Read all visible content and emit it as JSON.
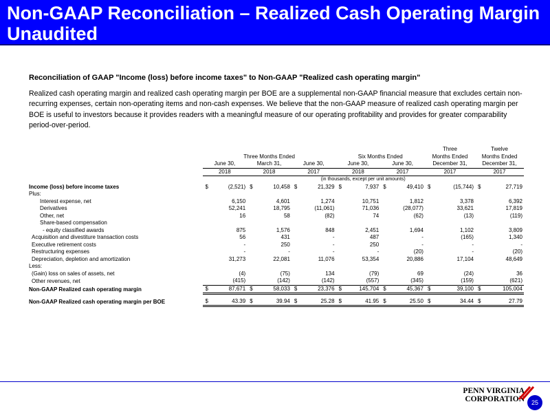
{
  "title": "Non-GAAP Reconciliation – Realized Cash Operating Margin Unaudited",
  "subheading": "Reconciliation of GAAP \"Income (loss) before income taxes\" to Non-GAAP \"Realized cash operating margin\"",
  "intro": "Realized cash operating margin and realized cash operating margin per BOE are a supplemental non-GAAP financial measure that excludes certain non-recurring expenses, certain non-operating items and non-cash  expenses. We believe that the non-GAAP measure of realized cash operating margin per BOE is useful to investors because it provides readers with a meaningful measure of our operating profitability and provides for greater comparability period-over-period.",
  "table": {
    "groups": {
      "three_months": "Three Months Ended",
      "six_months": "Six Months Ended",
      "three_top": "Three",
      "three_mid": "Months Ended",
      "twelve_top": "Twelve",
      "twelve_mid": "Months Ended"
    },
    "periods": [
      "June 30,",
      "March 31,",
      "June 30,",
      "June 30,",
      "June 30,",
      "December 31,",
      "December 31,"
    ],
    "years": [
      "2018",
      "2018",
      "2017",
      "2018",
      "2017",
      "2017",
      "2017"
    ],
    "units_note": "(in thousands, except per unit amounts)",
    "currency": "$",
    "rows": [
      {
        "label": "Income (loss) before income taxes",
        "bold": true,
        "indent": 0,
        "dollar": true,
        "values": [
          "(2,521)",
          "10,458",
          "21,329",
          "7,937",
          "49,410",
          "(15,744)",
          "27,719"
        ]
      },
      {
        "label": "Plus:",
        "bold": false,
        "indent": 0,
        "dollar": false,
        "values": [
          "",
          "",
          "",
          "",
          "",
          "",
          ""
        ]
      },
      {
        "label": "Interest expense, net",
        "bold": false,
        "indent": 2,
        "dollar": false,
        "values": [
          "6,150",
          "4,601",
          "1,274",
          "10,751",
          "1,812",
          "3,378",
          "6,392"
        ]
      },
      {
        "label": "Derivatives",
        "bold": false,
        "indent": 2,
        "dollar": false,
        "values": [
          "52,241",
          "18,795",
          "(11,061)",
          "71,036",
          "(28,077)",
          "33,621",
          "17,819"
        ]
      },
      {
        "label": "Other, net",
        "bold": false,
        "indent": 2,
        "dollar": false,
        "values": [
          "16",
          "58",
          "(82)",
          "74",
          "(62)",
          "(13)",
          "(119)"
        ]
      },
      {
        "label": "Share-based compensation",
        "bold": false,
        "indent": 2,
        "dollar": false,
        "values": [
          "",
          "",
          "",
          "",
          "",
          "",
          ""
        ]
      },
      {
        "label": "- equity classified awards",
        "bold": false,
        "indent": 3,
        "dollar": false,
        "values": [
          "875",
          "1,576",
          "848",
          "2,451",
          "1,694",
          "1,102",
          "3,809"
        ]
      },
      {
        "label": "Acquisition and divestiture transaction costs",
        "bold": false,
        "indent": 1,
        "dollar": false,
        "values": [
          "56",
          "431",
          "-",
          "487",
          "-",
          "(165)",
          "1,340"
        ]
      },
      {
        "label": "Executive retirement costs",
        "bold": false,
        "indent": 1,
        "dollar": false,
        "values": [
          "-",
          "250",
          "-",
          "250",
          "-",
          "-",
          "-"
        ]
      },
      {
        "label": "Restructuring expenses",
        "bold": false,
        "indent": 1,
        "dollar": false,
        "values": [
          "-",
          "-",
          "-",
          "-",
          "(20)",
          "-",
          "(20)"
        ]
      },
      {
        "label": "Depreciation, depletion and amortization",
        "bold": false,
        "indent": 1,
        "dollar": false,
        "values": [
          "31,273",
          "22,081",
          "11,076",
          "53,354",
          "20,886",
          "17,104",
          "48,649"
        ]
      },
      {
        "label": "Less:",
        "bold": false,
        "indent": 0,
        "dollar": false,
        "values": [
          "",
          "",
          "",
          "",
          "",
          "",
          ""
        ]
      },
      {
        "label": "(Gain) loss on sales of assets, net",
        "bold": false,
        "indent": 1,
        "dollar": false,
        "values": [
          "(4)",
          "(75)",
          "134",
          "(79)",
          "69",
          "(24)",
          "36"
        ]
      },
      {
        "label": "Other revenues, net",
        "bold": false,
        "indent": 1,
        "dollar": false,
        "underline": true,
        "values": [
          "(415)",
          "(142)",
          "(142)",
          "(557)",
          "(345)",
          "(159)",
          "(621)"
        ]
      },
      {
        "label": "Non-GAAP Realized cash operating margin",
        "bold": true,
        "indent": 0,
        "dollar": true,
        "total": true,
        "values": [
          "87,671",
          "58,033",
          "23,376",
          "145,704",
          "45,367",
          "39,100",
          "105,004"
        ]
      },
      {
        "label": "Non-GAAP Realized cash operating margin per BOE",
        "bold": true,
        "indent": 0,
        "dollar": true,
        "total": true,
        "gap_before": true,
        "values": [
          "43.39",
          "39.94",
          "25.28",
          "41.95",
          "25.50",
          "34.44",
          "27.79"
        ]
      }
    ]
  },
  "footer": {
    "logo_line1": "PENN VIRGINIA",
    "logo_line2": "CORPORATION",
    "page_number": "25"
  }
}
